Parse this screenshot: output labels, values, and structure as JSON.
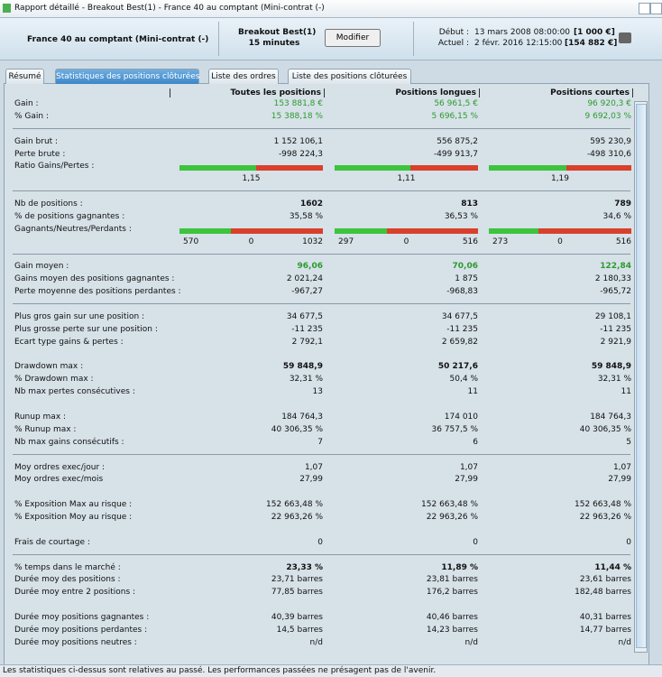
{
  "window_title": "Rapport détaillé - Breakout Best(1) - France 40 au comptant (Mini-contrat  (-)",
  "header": {
    "instrument": "France 40 au comptant (Mini-contrat  (-)",
    "strategy": "Breakout Best(1)",
    "timeframe": "15 minutes",
    "button": "Modifier",
    "start_label": "Début :",
    "start_date": "13 mars 2008 08:00:00",
    "start_value": "[1 000 €]",
    "current_label": "Actuel :",
    "current_date": "2 févr. 2016 12:15:00",
    "current_value": "[154 882 €]"
  },
  "tabs": [
    "Résumé",
    "Statistiques des positions clôturées",
    "Liste des ordres",
    "Liste des positions clôturées"
  ],
  "active_tab": 1,
  "table": {
    "columns": [
      "Toutes les positions",
      "Positions longues",
      "Positions courtes"
    ],
    "groups": [
      {
        "rule": true,
        "rows": [
          {
            "label": "Gain :",
            "values": [
              "153 881,8 €",
              "56 961,5 €",
              "96 920,3 €"
            ],
            "color": "#2e9a2e"
          },
          {
            "label": "% Gain :",
            "values": [
              "15 388,18 %",
              "5 696,15 %",
              "9 692,03 %"
            ],
            "color": "#2e9a2e"
          }
        ]
      },
      {
        "rule": true,
        "rows": [
          {
            "label": "Gain brut :",
            "values": [
              "1 152 106,1",
              "556 875,2",
              "595 230,9"
            ]
          },
          {
            "label": "Perte brute :",
            "values": [
              "-998 224,3",
              "-499 913,7",
              "-498 310,6"
            ]
          },
          {
            "label": "Ratio Gains/Pertes :",
            "bars": [
              {
                "value": 1.15,
                "label": "1,15"
              },
              {
                "value": 1.11,
                "label": "1,11"
              },
              {
                "value": 1.19,
                "label": "1,19"
              }
            ]
          }
        ]
      },
      {
        "rule": true,
        "rows": [
          {
            "label": "Nb de positions :",
            "values": [
              "1602",
              "813",
              "789"
            ],
            "bold": true
          },
          {
            "label": "% de positions gagnantes :",
            "values": [
              "35,58 %",
              "36,53 %",
              "34,6 %"
            ]
          },
          {
            "label": "Gagnants/Neutres/Perdants :",
            "bars": [
              [
                570,
                0,
                1032
              ],
              [
                297,
                0,
                516
              ],
              [
                273,
                0,
                516
              ]
            ]
          }
        ]
      },
      {
        "rule": true,
        "rows": [
          {
            "label": "Gain moyen :",
            "values": [
              "96,06",
              "70,06",
              "122,84"
            ],
            "bold": true,
            "color": "#2e9a2e"
          },
          {
            "label": "Gains moyen des positions gagnantes :",
            "values": [
              "2 021,24",
              "1 875",
              "2 180,33"
            ]
          },
          {
            "label": "Perte moyenne des positions perdantes :",
            "values": [
              "-967,27",
              "-968,83",
              "-965,72"
            ]
          }
        ]
      },
      {
        "rule": false,
        "rows": [
          {
            "label": "Plus gros gain sur une position :",
            "values": [
              "34 677,5",
              "34 677,5",
              "29 108,1"
            ]
          },
          {
            "label": "Plus grosse perte sur une position :",
            "values": [
              "-11 235",
              "-11 235",
              "-11 235"
            ]
          },
          {
            "label": "Ecart type gains & pertes :",
            "values": [
              "2 792,1",
              "2 659,82",
              "2 921,9"
            ]
          }
        ]
      },
      {
        "rule": false,
        "rows": [
          {
            "label": "Drawdown max :",
            "values": [
              "59 848,9",
              "50 217,6",
              "59 848,9"
            ],
            "bold": true
          },
          {
            "label": "% Drawdown max :",
            "values": [
              "32,31 %",
              "50,4 %",
              "32,31 %"
            ]
          },
          {
            "label": "Nb max pertes consécutives :",
            "values": [
              "13",
              "11",
              "11"
            ]
          }
        ]
      },
      {
        "rule": true,
        "rows": [
          {
            "label": "Runup max :",
            "values": [
              "184 764,3",
              "174 010",
              "184 764,3"
            ]
          },
          {
            "label": "% Runup max :",
            "values": [
              "40 306,35 %",
              "36 757,5 %",
              "40 306,35 %"
            ]
          },
          {
            "label": "Nb max gains consécutifs :",
            "values": [
              "7",
              "6",
              "5"
            ]
          }
        ]
      },
      {
        "rule": false,
        "rows": [
          {
            "label": "Moy ordres exec/jour :",
            "values": [
              "1,07",
              "1,07",
              "1,07"
            ]
          },
          {
            "label": "Moy ordres exec/mois",
            "values": [
              "27,99",
              "27,99",
              "27,99"
            ]
          }
        ]
      },
      {
        "rule": false,
        "rows": [
          {
            "label": "% Exposition Max au risque :",
            "values": [
              "152 663,48 %",
              "152 663,48 %",
              "152 663,48 %"
            ]
          },
          {
            "label": "% Exposition Moy au risque :",
            "values": [
              "22 963,26 %",
              "22 963,26 %",
              "22 963,26 %"
            ]
          }
        ]
      },
      {
        "rule": true,
        "rows": [
          {
            "label": "Frais de courtage :",
            "values": [
              "0",
              "0",
              "0"
            ]
          }
        ]
      },
      {
        "rule": false,
        "rows": [
          {
            "label": "% temps dans le marché :",
            "values": [
              "23,33 %",
              "11,89 %",
              "11,44 %"
            ],
            "bold": true
          },
          {
            "label": "Durée moy des positions :",
            "values": [
              "23,71 barres",
              "23,81 barres",
              "23,61 barres"
            ]
          },
          {
            "label": "Durée moy entre 2 positions :",
            "values": [
              "77,85 barres",
              "176,2 barres",
              "182,48 barres"
            ]
          }
        ]
      },
      {
        "rule": false,
        "rows": [
          {
            "label": "Durée moy positions gagnantes :",
            "values": [
              "40,39 barres",
              "40,46 barres",
              "40,31 barres"
            ]
          },
          {
            "label": "Durée moy positions perdantes :",
            "values": [
              "14,5 barres",
              "14,23 barres",
              "14,77 barres"
            ]
          },
          {
            "label": "Durée moy positions neutres :",
            "values": [
              "n/d",
              "n/d",
              "n/d"
            ]
          }
        ]
      }
    ]
  },
  "footer": "Les statistiques ci-dessus sont relatives au passé. Les performances passées ne présagent pas de l'avenir."
}
